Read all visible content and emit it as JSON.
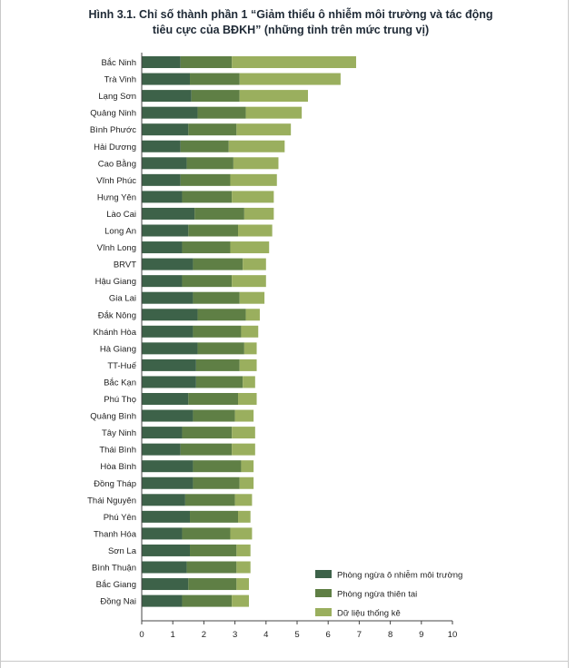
{
  "chart_data": {
    "type": "bar",
    "orientation": "horizontal",
    "stacked": true,
    "title_line1": "Hình 3.1. Chỉ số thành phần 1 “Giảm thiểu ô nhiễm môi trường và tác động",
    "title_line2": "tiêu cực của BĐKH” (những tỉnh trên mức trung vị)",
    "categories": [
      "Bắc Ninh",
      "Trà Vinh",
      "Lạng Sơn",
      "Quảng Ninh",
      "Bình Phước",
      "Hải Dương",
      "Cao Bằng",
      "Vĩnh Phúc",
      "Hưng Yên",
      "Lào Cai",
      "Long An",
      "Vĩnh Long",
      "BRVT",
      "Hậu Giang",
      "Gia Lai",
      "Đắk Nông",
      "Khánh Hòa",
      "Hà Giang",
      "TT-Huế",
      "Bắc Kạn",
      "Phú Thọ",
      "Quảng Bình",
      "Tây Ninh",
      "Thái Bình",
      "Hòa Bình",
      "Đồng Tháp",
      "Thái Nguyên",
      "Phú Yên",
      "Thanh Hóa",
      "Sơn La",
      "Bình Thuận",
      "Bắc Giang",
      "Đồng Nai"
    ],
    "series": [
      {
        "name": "Phòng ngừa ô nhiễm môi trường",
        "color": "#3d6249",
        "values": [
          1.25,
          1.55,
          1.6,
          1.8,
          1.5,
          1.25,
          1.45,
          1.25,
          1.3,
          1.7,
          1.5,
          1.3,
          1.65,
          1.3,
          1.65,
          1.8,
          1.65,
          1.8,
          1.75,
          1.75,
          1.5,
          1.65,
          1.3,
          1.25,
          1.65,
          1.65,
          1.4,
          1.55,
          1.3,
          1.55,
          1.45,
          1.5,
          1.3
        ]
      },
      {
        "name": "Phòng ngừa thiên tai",
        "color": "#5f7f45",
        "values": [
          1.65,
          1.6,
          1.55,
          1.55,
          1.55,
          1.55,
          1.5,
          1.6,
          1.6,
          1.6,
          1.6,
          1.55,
          1.6,
          1.6,
          1.5,
          1.55,
          1.55,
          1.5,
          1.4,
          1.5,
          1.6,
          1.35,
          1.6,
          1.65,
          1.55,
          1.5,
          1.6,
          1.55,
          1.55,
          1.5,
          1.6,
          1.55,
          1.6
        ]
      },
      {
        "name": "Dữ liệu thống kê",
        "color": "#9aaf5e",
        "values": [
          4.0,
          3.25,
          2.2,
          1.8,
          1.75,
          1.8,
          1.45,
          1.5,
          1.35,
          0.95,
          1.1,
          1.25,
          0.75,
          1.1,
          0.8,
          0.45,
          0.55,
          0.4,
          0.55,
          0.4,
          0.6,
          0.6,
          0.75,
          0.75,
          0.4,
          0.45,
          0.55,
          0.4,
          0.7,
          0.45,
          0.45,
          0.4,
          0.55
        ]
      }
    ],
    "xlim": [
      0,
      10
    ],
    "xticks": [
      "0",
      "1",
      "2",
      "3",
      "4",
      "5",
      "6",
      "7",
      "8",
      "9",
      "10"
    ],
    "grid": false,
    "legend_position": "bottom-right"
  }
}
